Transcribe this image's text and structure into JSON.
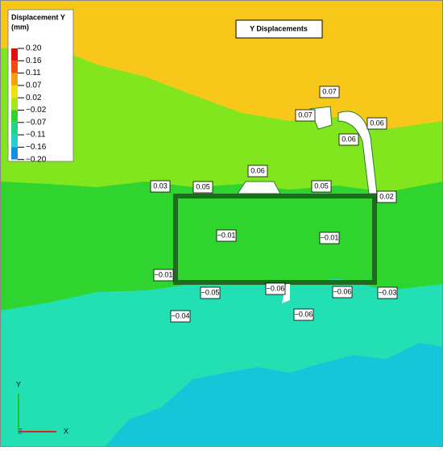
{
  "legend": {
    "title": "Displacement Y",
    "unit": "(mm)",
    "levels": [
      "0.20",
      "0.16",
      "0.11",
      "0.07",
      "0.02",
      "−0.02",
      "−0.07",
      "−0.11",
      "−0.16",
      "−0.20"
    ]
  },
  "plot_title": "Y Displacements",
  "labels": [
    "0.07",
    "0.07",
    "0.06",
    "0.06",
    "0.06",
    "0.03",
    "0.05",
    "0.05",
    "0.02",
    "−0.01",
    "−0.01",
    "−0.01",
    "−0.05",
    "−0.06",
    "−0.06",
    "−0.03",
    "−0.04",
    "−0.06"
  ],
  "axes": {
    "x": "X",
    "y": "Y",
    "z": "Z"
  }
}
